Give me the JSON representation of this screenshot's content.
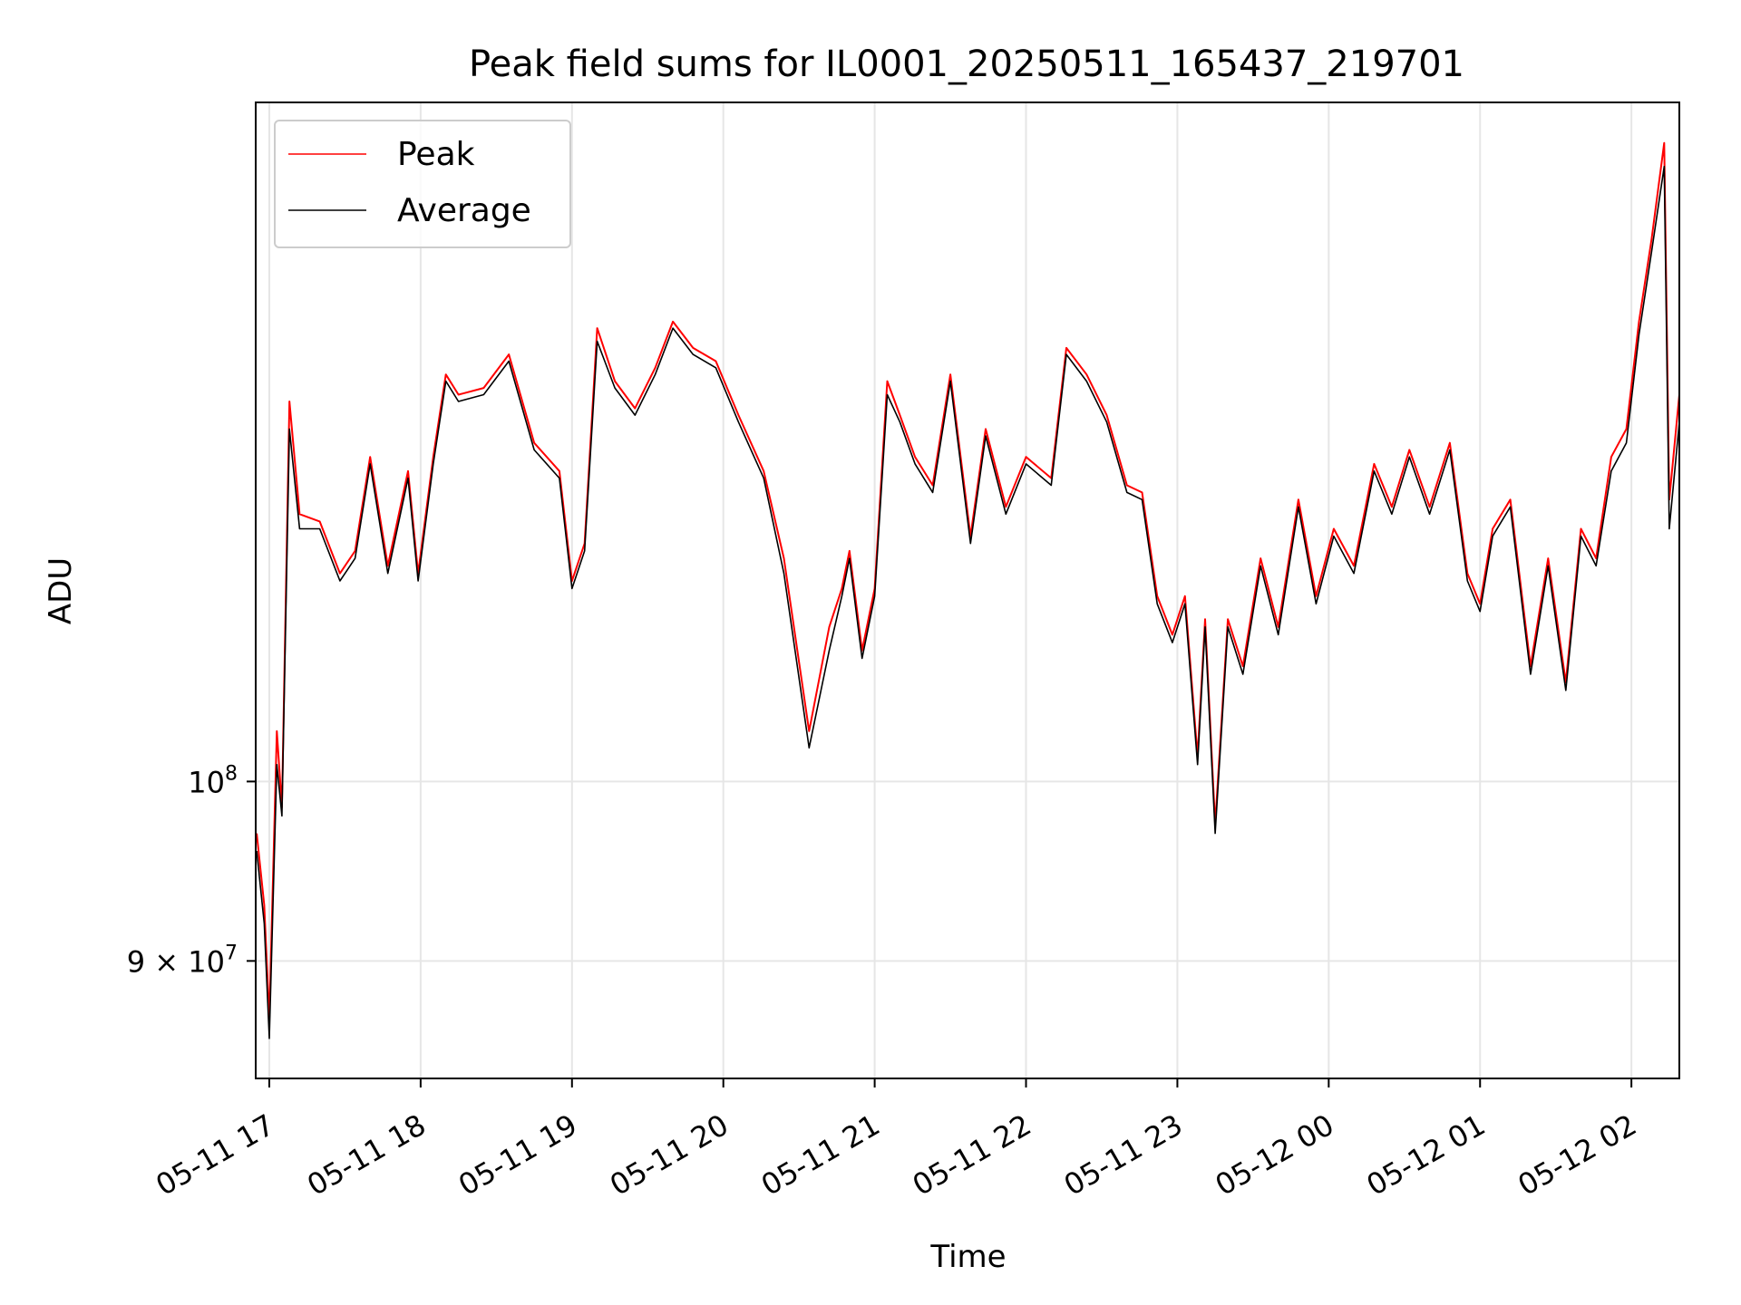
{
  "chart_data": {
    "type": "line",
    "title": "Peak field sums for IL0001_20250511_165437_219701",
    "xlabel": "Time",
    "ylabel": "ADU",
    "yscale": "log",
    "ylim": [
      84000000,
      149000000
    ],
    "xlim": [
      "2025-05-11 16:54:37",
      "2025-05-12 02:19:00"
    ],
    "grid": true,
    "legend_position": "upper-left",
    "x_ticks": [
      {
        "value": "2025-05-11 17:00",
        "label": "05-11 17"
      },
      {
        "value": "2025-05-11 18:00",
        "label": "05-11 18"
      },
      {
        "value": "2025-05-11 19:00",
        "label": "05-11 19"
      },
      {
        "value": "2025-05-11 20:00",
        "label": "05-11 20"
      },
      {
        "value": "2025-05-11 21:00",
        "label": "05-11 21"
      },
      {
        "value": "2025-05-11 22:00",
        "label": "05-11 22"
      },
      {
        "value": "2025-05-11 23:00",
        "label": "05-11 23"
      },
      {
        "value": "2025-05-12 00:00",
        "label": "05-12 00"
      },
      {
        "value": "2025-05-12 01:00",
        "label": "05-12 01"
      },
      {
        "value": "2025-05-12 02:00",
        "label": "05-12 02"
      }
    ],
    "y_ticks": [
      {
        "value": 90000000,
        "mantissa": "9",
        "times": "×",
        "base": "10",
        "exp": "7"
      },
      {
        "value": 100000000,
        "mantissa": "",
        "times": "",
        "base": "10",
        "exp": "8"
      }
    ],
    "series": [
      {
        "name": "Peak",
        "color": "#ff0000",
        "x": [
          "2025-05-11 16:55",
          "2025-05-11 16:58",
          "2025-05-11 17:00",
          "2025-05-11 17:03",
          "2025-05-11 17:05",
          "2025-05-11 17:08",
          "2025-05-11 17:12",
          "2025-05-11 17:20",
          "2025-05-11 17:28",
          "2025-05-11 17:34",
          "2025-05-11 17:40",
          "2025-05-11 17:47",
          "2025-05-11 17:55",
          "2025-05-11 17:59",
          "2025-05-11 18:05",
          "2025-05-11 18:10",
          "2025-05-11 18:15",
          "2025-05-11 18:25",
          "2025-05-11 18:35",
          "2025-05-11 18:45",
          "2025-05-11 18:55",
          "2025-05-11 19:00",
          "2025-05-11 19:05",
          "2025-05-11 19:10",
          "2025-05-11 19:17",
          "2025-05-11 19:25",
          "2025-05-11 19:33",
          "2025-05-11 19:40",
          "2025-05-11 19:48",
          "2025-05-11 19:57",
          "2025-05-11 20:06",
          "2025-05-11 20:16",
          "2025-05-11 20:24",
          "2025-05-11 20:34",
          "2025-05-11 20:42",
          "2025-05-11 20:47",
          "2025-05-11 20:50",
          "2025-05-11 20:55",
          "2025-05-11 21:00",
          "2025-05-11 21:05",
          "2025-05-11 21:10",
          "2025-05-11 21:16",
          "2025-05-11 21:23",
          "2025-05-11 21:30",
          "2025-05-11 21:38",
          "2025-05-11 21:44",
          "2025-05-11 21:52",
          "2025-05-11 22:00",
          "2025-05-11 22:10",
          "2025-05-11 22:16",
          "2025-05-11 22:24",
          "2025-05-11 22:32",
          "2025-05-11 22:40",
          "2025-05-11 22:46",
          "2025-05-11 22:52",
          "2025-05-11 22:58",
          "2025-05-11 23:03",
          "2025-05-11 23:08",
          "2025-05-11 23:11",
          "2025-05-11 23:15",
          "2025-05-11 23:20",
          "2025-05-11 23:26",
          "2025-05-11 23:33",
          "2025-05-11 23:40",
          "2025-05-11 23:48",
          "2025-05-11 23:55",
          "2025-05-12 00:02",
          "2025-05-12 00:10",
          "2025-05-12 00:18",
          "2025-05-12 00:25",
          "2025-05-12 00:32",
          "2025-05-12 00:40",
          "2025-05-12 00:48",
          "2025-05-12 00:55",
          "2025-05-12 01:00",
          "2025-05-12 01:05",
          "2025-05-12 01:12",
          "2025-05-12 01:20",
          "2025-05-12 01:27",
          "2025-05-12 01:34",
          "2025-05-12 01:40",
          "2025-05-12 01:46",
          "2025-05-12 01:52",
          "2025-05-12 01:58",
          "2025-05-12 02:03",
          "2025-05-12 02:08",
          "2025-05-12 02:13",
          "2025-05-12 02:15",
          "2025-05-12 02:19"
        ],
        "values": [
          97000000,
          93000000,
          87000000,
          103000000,
          98500000,
          125000000,
          117000000,
          116500000,
          113000000,
          114500000,
          121000000,
          113500000,
          120000000,
          113000000,
          121000000,
          127000000,
          125500000,
          126000000,
          128500000,
          122000000,
          120000000,
          112500000,
          115000000,
          130500000,
          126500000,
          124500000,
          127500000,
          131000000,
          129000000,
          128000000,
          124000000,
          120000000,
          114000000,
          103000000,
          109500000,
          112000000,
          114500000,
          108000000,
          112000000,
          126500000,
          124000000,
          121000000,
          119000000,
          127000000,
          115500000,
          123000000,
          117500000,
          121000000,
          119500000,
          129000000,
          127000000,
          124000000,
          119000000,
          118500000,
          111500000,
          109000000,
          111500000,
          101500000,
          110000000,
          97500000,
          110000000,
          107000000,
          114000000,
          109500000,
          118000000,
          111500000,
          116000000,
          113500000,
          120500000,
          117500000,
          121500000,
          117500000,
          122000000,
          113000000,
          111000000,
          116000000,
          118000000,
          107000000,
          114000000,
          106000000,
          116000000,
          114000000,
          121000000,
          123000000,
          131000000,
          137500000,
          145500000,
          118000000,
          125500000
        ]
      },
      {
        "name": "Average",
        "color": "#000000",
        "x": [
          "2025-05-11 16:55",
          "2025-05-11 16:58",
          "2025-05-11 17:00",
          "2025-05-11 17:03",
          "2025-05-11 17:05",
          "2025-05-11 17:08",
          "2025-05-11 17:12",
          "2025-05-11 17:20",
          "2025-05-11 17:28",
          "2025-05-11 17:34",
          "2025-05-11 17:40",
          "2025-05-11 17:47",
          "2025-05-11 17:55",
          "2025-05-11 17:59",
          "2025-05-11 18:05",
          "2025-05-11 18:10",
          "2025-05-11 18:15",
          "2025-05-11 18:25",
          "2025-05-11 18:35",
          "2025-05-11 18:45",
          "2025-05-11 18:55",
          "2025-05-11 19:00",
          "2025-05-11 19:05",
          "2025-05-11 19:10",
          "2025-05-11 19:17",
          "2025-05-11 19:25",
          "2025-05-11 19:33",
          "2025-05-11 19:40",
          "2025-05-11 19:48",
          "2025-05-11 19:57",
          "2025-05-11 20:06",
          "2025-05-11 20:16",
          "2025-05-11 20:24",
          "2025-05-11 20:34",
          "2025-05-11 20:42",
          "2025-05-11 20:47",
          "2025-05-11 20:50",
          "2025-05-11 20:55",
          "2025-05-11 21:00",
          "2025-05-11 21:05",
          "2025-05-11 21:10",
          "2025-05-11 21:16",
          "2025-05-11 21:23",
          "2025-05-11 21:30",
          "2025-05-11 21:38",
          "2025-05-11 21:44",
          "2025-05-11 21:52",
          "2025-05-11 22:00",
          "2025-05-11 22:10",
          "2025-05-11 22:16",
          "2025-05-11 22:24",
          "2025-05-11 22:32",
          "2025-05-11 22:40",
          "2025-05-11 22:46",
          "2025-05-11 22:52",
          "2025-05-11 22:58",
          "2025-05-11 23:03",
          "2025-05-11 23:08",
          "2025-05-11 23:11",
          "2025-05-11 23:15",
          "2025-05-11 23:20",
          "2025-05-11 23:26",
          "2025-05-11 23:33",
          "2025-05-11 23:40",
          "2025-05-11 23:48",
          "2025-05-11 23:55",
          "2025-05-12 00:02",
          "2025-05-12 00:10",
          "2025-05-12 00:18",
          "2025-05-12 00:25",
          "2025-05-12 00:32",
          "2025-05-12 00:40",
          "2025-05-12 00:48",
          "2025-05-12 00:55",
          "2025-05-12 01:00",
          "2025-05-12 01:05",
          "2025-05-12 01:12",
          "2025-05-12 01:20",
          "2025-05-12 01:27",
          "2025-05-12 01:34",
          "2025-05-12 01:40",
          "2025-05-12 01:46",
          "2025-05-12 01:52",
          "2025-05-12 01:58",
          "2025-05-12 02:03",
          "2025-05-12 02:08",
          "2025-05-12 02:13",
          "2025-05-12 02:15",
          "2025-05-12 02:19"
        ],
        "values": [
          96000000,
          92000000,
          86000000,
          101000000,
          98000000,
          123000000,
          116000000,
          116000000,
          112500000,
          114000000,
          120500000,
          113000000,
          119500000,
          112500000,
          120500000,
          126500000,
          125000000,
          125500000,
          128000000,
          121500000,
          119500000,
          112000000,
          114500000,
          129500000,
          126000000,
          124000000,
          127000000,
          130500000,
          128500000,
          127500000,
          123500000,
          119500000,
          113000000,
          102000000,
          108000000,
          111500000,
          114000000,
          107500000,
          111500000,
          125500000,
          123500000,
          120500000,
          118500000,
          126500000,
          115000000,
          122500000,
          117000000,
          120500000,
          119000000,
          128500000,
          126500000,
          123500000,
          118500000,
          118000000,
          111000000,
          108500000,
          111000000,
          101000000,
          109500000,
          97000000,
          109500000,
          106500000,
          113500000,
          109000000,
          117500000,
          111000000,
          115500000,
          113000000,
          120000000,
          117000000,
          121000000,
          117000000,
          121500000,
          112500000,
          110500000,
          115500000,
          117500000,
          106500000,
          113500000,
          105500000,
          115500000,
          113500000,
          120000000,
          122000000,
          130000000,
          136500000,
          143500000,
          116000000,
          123500000
        ]
      }
    ]
  }
}
